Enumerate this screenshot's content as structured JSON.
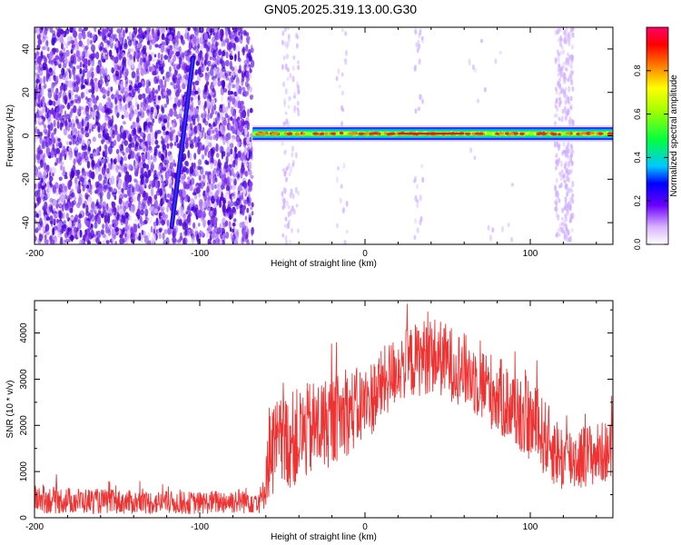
{
  "title": "GN05.2025.319.13.00.G30",
  "chart_data": [
    {
      "type": "heatmap",
      "xlabel": "Height of straight line (km)",
      "ylabel": "Frequency (Hz)",
      "xlim": [
        -200,
        150
      ],
      "ylim": [
        -50,
        50
      ],
      "xticks": [
        -200,
        -100,
        0,
        100
      ],
      "yticks": [
        -40,
        -20,
        0,
        20,
        40
      ],
      "colorbar": {
        "label": "Normalized spectral amplitude",
        "range": [
          0,
          1
        ],
        "ticks": [
          0.0,
          0.2,
          0.4,
          0.6,
          0.8
        ]
      },
      "regions": [
        {
          "x": [
            -200,
            -68
          ],
          "content": "broadband noise"
        },
        {
          "x": [
            -68,
            150
          ],
          "content": "narrow band near 0 Hz",
          "frequency_center": 1
        }
      ],
      "streak": {
        "x": [
          -117,
          -104
        ],
        "y": [
          -42,
          36
        ]
      }
    },
    {
      "type": "line",
      "xlabel": "Height of straight line (km)",
      "ylabel": "SNR (10 * v/v)",
      "xlim": [
        -200,
        150
      ],
      "ylim": [
        0,
        4700
      ],
      "xticks": [
        -200,
        -100,
        0,
        100
      ],
      "yticks": [
        0,
        1000,
        2000,
        3000,
        4000
      ],
      "series": [
        {
          "color": "#ee3333",
          "envelope": [
            {
              "x": -200,
              "low": 100,
              "high": 700
            },
            {
              "x": -150,
              "low": 80,
              "high": 600
            },
            {
              "x": -100,
              "low": 80,
              "high": 560
            },
            {
              "x": -62,
              "low": 100,
              "high": 700
            },
            {
              "x": -58,
              "low": 400,
              "high": 2500
            },
            {
              "x": -30,
              "low": 900,
              "high": 3000
            },
            {
              "x": 0,
              "low": 1600,
              "high": 3300
            },
            {
              "x": 20,
              "low": 2500,
              "high": 4000
            },
            {
              "x": 40,
              "low": 2700,
              "high": 4400
            },
            {
              "x": 60,
              "low": 2400,
              "high": 4000
            },
            {
              "x": 80,
              "low": 1800,
              "high": 3500
            },
            {
              "x": 100,
              "low": 1200,
              "high": 3000
            },
            {
              "x": 120,
              "low": 500,
              "high": 2000
            },
            {
              "x": 150,
              "low": 800,
              "high": 2100
            }
          ]
        }
      ]
    }
  ]
}
